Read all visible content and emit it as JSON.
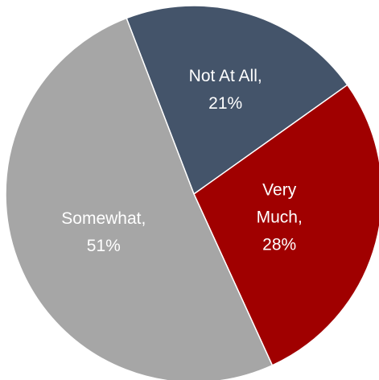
{
  "chart_data": {
    "type": "pie",
    "title": "",
    "start_angle_deg": -21,
    "direction": "clockwise",
    "slices": [
      {
        "name": "Not At All",
        "value": 21,
        "label_lines": [
          "Not At All,",
          "21%"
        ],
        "color": "#44546a"
      },
      {
        "name": "Very Much",
        "value": 28,
        "label_lines": [
          "Very",
          "Much,",
          "28%"
        ],
        "color": "#a00000"
      },
      {
        "name": "Somewhat",
        "value": 51,
        "label_lines": [
          "Somewhat,",
          "51%"
        ],
        "color": "#a6a6a6"
      }
    ],
    "legend": "none",
    "labels": "inside"
  }
}
